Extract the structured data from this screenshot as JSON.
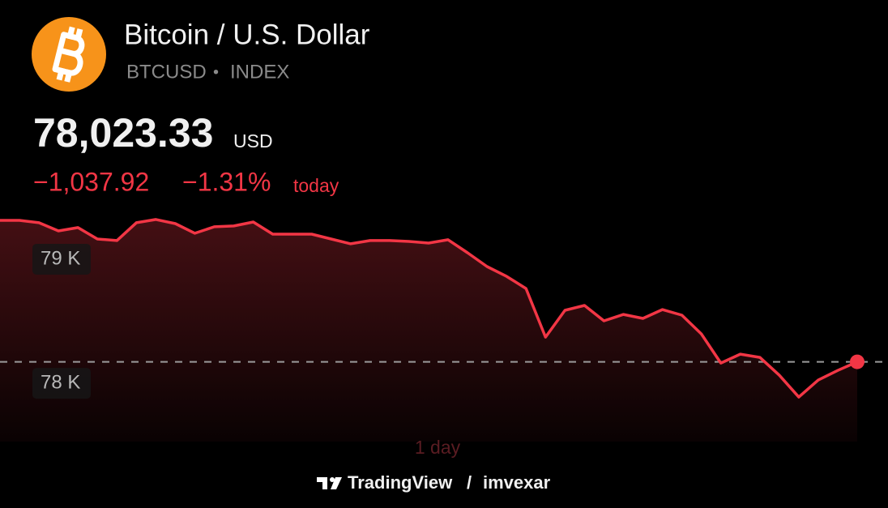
{
  "header": {
    "title": "Bitcoin / U.S. Dollar",
    "symbol": "BTCUSD",
    "separator": "•",
    "exchange": "INDEX",
    "price": "78,023.33",
    "currency": "USD",
    "change": "−1,037.92",
    "change_percent": "−1.31%",
    "period": "today"
  },
  "chart_data": {
    "type": "line",
    "color": "#f23645",
    "values": [
      79163,
      79163,
      79144,
      79078,
      79105,
      79013,
      79000,
      79144,
      79170,
      79137,
      79059,
      79111,
      79118,
      79150,
      79052,
      79052,
      79052,
      79013,
      78974,
      79000,
      79000,
      78993,
      78980,
      79007,
      78902,
      78791,
      78712,
      78614,
      78222,
      78438,
      78477,
      78353,
      78405,
      78373,
      78444,
      78399,
      78248,
      78013,
      78085,
      78059,
      77915,
      77739,
      77876,
      77954,
      78023
    ],
    "ylim": [
      77400,
      79300
    ],
    "yticks": [
      {
        "value": 79000,
        "label": "79 K"
      },
      {
        "value": 78000,
        "label": "78 K"
      }
    ],
    "range_label": "1 day"
  },
  "footer": {
    "brand": "TradingView",
    "separator": "/",
    "user": "imvexar"
  }
}
